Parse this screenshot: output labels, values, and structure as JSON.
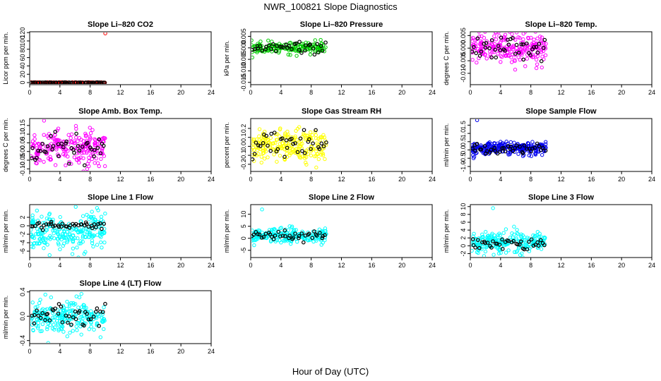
{
  "figure": {
    "title": "NWR_100821  Slope Diagnostics",
    "xlabel": "Hour of Day (UTC)"
  },
  "chart_data": [
    {
      "type": "scatter",
      "title": "Slope Li–820 CO2",
      "ylabel": "Licor ppm per min.",
      "xlim": [
        0,
        24
      ],
      "ylim": [
        -5,
        122
      ],
      "xticks": [
        0,
        4,
        8,
        12,
        16,
        20,
        24
      ],
      "yticks": [
        0,
        20,
        40,
        60,
        80,
        100,
        120
      ],
      "ytick_labels": [
        "0",
        "20",
        "40",
        "60",
        "80",
        "100",
        "120"
      ],
      "color": "#ff0000",
      "x_extent": [
        0.1,
        10.0
      ],
      "sample_center": 0,
      "sample_spread": 0.4,
      "sample_points": 140,
      "spike": [
        10.0,
        118
      ],
      "black_center": 0,
      "black_spread": 0.3,
      "black_points": 50
    },
    {
      "type": "scatter",
      "title": "Slope Li–820 Pressure",
      "ylabel": "kPa per min.",
      "xlim": [
        0,
        24
      ],
      "ylim": [
        -0.016,
        0.007
      ],
      "xticks": [
        0,
        4,
        8,
        12,
        16,
        20,
        24
      ],
      "yticks": [
        -0.015,
        -0.01,
        -0.005,
        0.0,
        0.005
      ],
      "ytick_labels": [
        "-0.015",
        "-0.010",
        "-0.005",
        "0.000",
        "0.005"
      ],
      "color": "#00cc00",
      "x_extent": [
        0.1,
        10.0
      ],
      "sample_center": 0.0,
      "sample_spread": 0.0012,
      "sample_points": 170,
      "black_center": 0.0,
      "black_spread": 0.0012,
      "black_points": 36
    },
    {
      "type": "scatter",
      "title": "Slope Li–820 Temp.",
      "ylabel": "degrees C per min.",
      "xlim": [
        0,
        24
      ],
      "ylim": [
        -0.0145,
        0.0065
      ],
      "xticks": [
        0,
        4,
        8,
        12,
        16,
        20,
        24
      ],
      "yticks": [
        -0.01,
        -0.005,
        0.0,
        0.005
      ],
      "ytick_labels": [
        "-0.010",
        "-0.005",
        "0.000",
        "0.005"
      ],
      "color": "#ff00ff",
      "x_extent": [
        0.1,
        10.0
      ],
      "sample_center": 0.0,
      "sample_spread": 0.003,
      "sample_points": 230,
      "black_center": 0.0,
      "black_spread": 0.0025,
      "black_points": 40
    },
    {
      "type": "scatter",
      "title": "Slope Amb. Box Temp.",
      "ylabel": "degrees C per min.",
      "xlim": [
        0,
        24
      ],
      "ylim": [
        -0.115,
        0.19
      ],
      "xticks": [
        0,
        4,
        8,
        12,
        16,
        20,
        24
      ],
      "yticks": [
        -0.1,
        -0.05,
        0.0,
        0.05,
        0.1,
        0.15
      ],
      "ytick_labels": [
        "-0.10",
        "-0.05",
        "0.00",
        "0.05",
        "0.10",
        "0.15"
      ],
      "color": "#ff00ff",
      "x_extent": [
        0.1,
        10.0
      ],
      "sample_center": 0.02,
      "sample_spread": 0.05,
      "sample_points": 220,
      "black_center": 0.02,
      "black_spread": 0.05,
      "black_points": 40
    },
    {
      "type": "scatter",
      "title": "Slope Gas Stream RH",
      "ylabel": "percent per min.",
      "xlim": [
        0,
        24
      ],
      "ylim": [
        -0.28,
        0.31
      ],
      "xticks": [
        0,
        4,
        8,
        12,
        16,
        20,
        24
      ],
      "yticks": [
        -0.2,
        -0.1,
        0.0,
        0.1,
        0.2
      ],
      "ytick_labels": [
        "-0.2",
        "-0.1",
        "0.0",
        "0.1",
        "0.2"
      ],
      "color": "#ffff00",
      "x_extent": [
        0.1,
        10.0
      ],
      "sample_center": 0.0,
      "sample_spread": 0.09,
      "sample_points": 230,
      "black_center": 0.0,
      "black_spread": 0.08,
      "black_points": 38
    },
    {
      "type": "scatter",
      "title": "Slope Sample Flow",
      "ylabel": "ml/min per min.",
      "xlim": [
        0,
        24
      ],
      "ylim": [
        -1.3,
        1.9
      ],
      "xticks": [
        0,
        4,
        8,
        12,
        16,
        20,
        24
      ],
      "yticks": [
        -1.0,
        -0.5,
        0.0,
        0.5,
        1.0,
        1.5
      ],
      "ytick_labels": [
        "-1.0",
        "-0.5",
        "0.0",
        "0.5",
        "1.0",
        "1.5"
      ],
      "color": "#0000ee",
      "x_extent": [
        0.1,
        10.0
      ],
      "sample_center": 0.1,
      "sample_spread": 0.18,
      "sample_points": 260,
      "spike": [
        0.9,
        1.8
      ],
      "black_center": 0.1,
      "black_spread": 0.15,
      "black_points": 38
    },
    {
      "type": "scatter",
      "title": "Slope Line 1 Flow",
      "ylabel": "ml/min per min.",
      "xlim": [
        0,
        24
      ],
      "ylim": [
        -7.5,
        5
      ],
      "xticks": [
        0,
        4,
        8,
        12,
        16,
        20,
        24
      ],
      "yticks": [
        -6,
        -4,
        -2,
        0,
        2
      ],
      "ytick_labels": [
        "-6",
        "-4",
        "-2",
        "0",
        "2"
      ],
      "color": "#00ffff",
      "x_extent": [
        0.1,
        10.0
      ],
      "sample_center": -1.5,
      "sample_spread": 2.2,
      "sample_points": 240,
      "black_center": 0.0,
      "black_spread": 0.5,
      "black_points": 40
    },
    {
      "type": "scatter",
      "title": "Slope Line 2 Flow",
      "ylabel": "ml/min per min.",
      "xlim": [
        0,
        24
      ],
      "ylim": [
        -8,
        14
      ],
      "xticks": [
        0,
        4,
        8,
        12,
        16,
        20,
        24
      ],
      "yticks": [
        -5,
        0,
        5,
        10
      ],
      "ytick_labels": [
        "-5",
        "0",
        "5",
        "10"
      ],
      "color": "#00ffff",
      "x_extent": [
        0.1,
        10.0
      ],
      "sample_center": 1.0,
      "sample_spread": 1.6,
      "sample_points": 220,
      "spike": [
        1.5,
        12
      ],
      "black_center": 1.0,
      "black_spread": 0.9,
      "black_points": 38
    },
    {
      "type": "scatter",
      "title": "Slope Line 3 Flow",
      "ylabel": "ml/min per min.",
      "xlim": [
        0,
        24
      ],
      "ylim": [
        -3,
        10.5
      ],
      "xticks": [
        0,
        4,
        8,
        12,
        16,
        20,
        24
      ],
      "yticks": [
        -2,
        0,
        2,
        4,
        6,
        8,
        10
      ],
      "ytick_labels": [
        "-2",
        "0",
        "2",
        "4",
        "6",
        "8",
        "10"
      ],
      "color": "#00ffff",
      "x_extent": [
        0.1,
        10.0
      ],
      "sample_center": 0.8,
      "sample_spread": 1.3,
      "sample_points": 230,
      "spike": [
        3.0,
        9.6
      ],
      "black_center": 0.6,
      "black_spread": 0.8,
      "black_points": 38
    },
    {
      "type": "scatter",
      "title": "Slope Line 4 (LT) Flow",
      "ylabel": "ml/min per min.",
      "xlim": [
        0,
        24
      ],
      "ylim": [
        -0.45,
        0.42
      ],
      "xticks": [
        0,
        4,
        8,
        12,
        16,
        20,
        24
      ],
      "yticks": [
        -0.4,
        0.0,
        0.4
      ],
      "ytick_labels": [
        "-0.4",
        "0.0",
        "0.4"
      ],
      "color": "#00ffff",
      "x_extent": [
        0.1,
        10.0
      ],
      "sample_center": 0.0,
      "sample_spread": 0.13,
      "sample_points": 230,
      "black_center": 0.02,
      "black_spread": 0.12,
      "black_points": 40
    }
  ]
}
